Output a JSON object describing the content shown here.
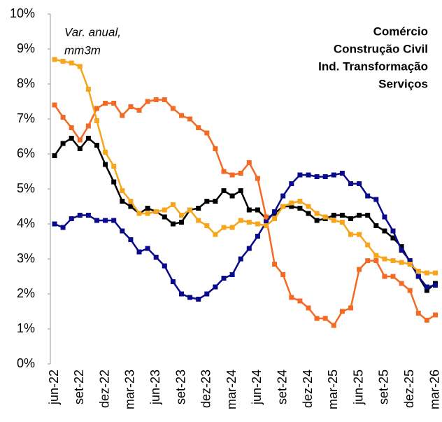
{
  "chart_data": {
    "type": "line",
    "annotation": [
      "Var. anual,",
      "mm3m"
    ],
    "categories": [
      "jun-22",
      null,
      null,
      "set-22",
      null,
      null,
      "dez-22",
      null,
      null,
      "mar-23",
      null,
      null,
      "jun-23",
      null,
      null,
      "set-23",
      null,
      null,
      "dez-23",
      null,
      null,
      "mar-24",
      null,
      null,
      "jun-24",
      null,
      null,
      "set-24",
      null,
      null,
      "dez-24",
      null,
      null,
      "mar-25",
      null,
      null,
      "jun-25",
      null,
      null,
      "set-25",
      null,
      null,
      "dez-25",
      null,
      null,
      "mar-26"
    ],
    "series": [
      {
        "name": "Comércio",
        "color": "#000000",
        "values": [
          5.95,
          6.3,
          6.45,
          6.15,
          6.45,
          6.25,
          5.7,
          5.2,
          4.65,
          4.5,
          4.3,
          4.45,
          4.35,
          4.2,
          4.0,
          4.05,
          4.4,
          4.45,
          4.65,
          4.65,
          4.95,
          4.8,
          4.95,
          4.4,
          4.4,
          4.15,
          4.3,
          4.5,
          4.5,
          4.45,
          4.3,
          4.1,
          4.15,
          4.25,
          4.25,
          4.15,
          4.25,
          4.25,
          3.95,
          3.8,
          3.6,
          3.35,
          2.9,
          2.5,
          2.1,
          2.3
        ]
      },
      {
        "name": "Construção Civil",
        "color": "#f26a24",
        "values": [
          7.4,
          7.05,
          6.75,
          6.4,
          6.8,
          7.3,
          7.45,
          7.45,
          7.1,
          7.35,
          7.25,
          7.5,
          7.55,
          7.55,
          7.3,
          7.1,
          7.0,
          6.75,
          6.6,
          6.15,
          5.5,
          5.4,
          5.45,
          5.75,
          5.3,
          4.2,
          2.85,
          2.55,
          1.9,
          1.8,
          1.6,
          1.3,
          1.3,
          1.1,
          1.5,
          1.6,
          2.7,
          2.95,
          2.95,
          2.5,
          2.5,
          2.3,
          2.1,
          1.45,
          1.25,
          1.4
        ]
      },
      {
        "name": "Ind. Transformação",
        "color": "#0a0a8c",
        "values": [
          4.0,
          3.9,
          4.15,
          4.25,
          4.25,
          4.1,
          4.1,
          4.1,
          3.8,
          3.55,
          3.2,
          3.3,
          3.05,
          2.8,
          2.35,
          2.0,
          1.9,
          1.85,
          2.0,
          2.2,
          2.45,
          2.55,
          3.0,
          3.3,
          3.65,
          4.05,
          4.35,
          4.8,
          5.15,
          5.4,
          5.4,
          5.35,
          5.35,
          5.4,
          5.45,
          5.15,
          5.15,
          4.8,
          4.7,
          4.2,
          3.8,
          3.25,
          2.95,
          2.5,
          2.2,
          2.25
        ]
      },
      {
        "name": "Serviços",
        "color": "#f7a51c",
        "values": [
          8.7,
          8.65,
          8.6,
          8.5,
          7.85,
          6.95,
          6.05,
          5.65,
          4.95,
          4.65,
          4.3,
          4.3,
          4.35,
          4.4,
          4.55,
          4.25,
          4.4,
          4.1,
          3.95,
          3.7,
          3.9,
          3.9,
          4.1,
          4.05,
          4.0,
          3.95,
          4.15,
          4.5,
          4.6,
          4.65,
          4.5,
          4.3,
          4.2,
          4.1,
          4.05,
          3.7,
          3.7,
          3.4,
          3.1,
          3.0,
          2.95,
          2.9,
          2.85,
          2.65,
          2.6,
          2.6
        ]
      }
    ],
    "ylim": [
      0,
      10
    ],
    "yticks": [
      {
        "value": 0,
        "label": "0%"
      },
      {
        "value": 1,
        "label": "1%"
      },
      {
        "value": 2,
        "label": "2%"
      },
      {
        "value": 3,
        "label": "3%"
      },
      {
        "value": 4,
        "label": "4%"
      },
      {
        "value": 5,
        "label": "5%"
      },
      {
        "value": 6,
        "label": "6%"
      },
      {
        "value": 7,
        "label": "7%"
      },
      {
        "value": 8,
        "label": "8%"
      },
      {
        "value": 9,
        "label": "9%"
      },
      {
        "value": 10,
        "label": "10%"
      }
    ],
    "grid": false,
    "legend": "upper right"
  }
}
